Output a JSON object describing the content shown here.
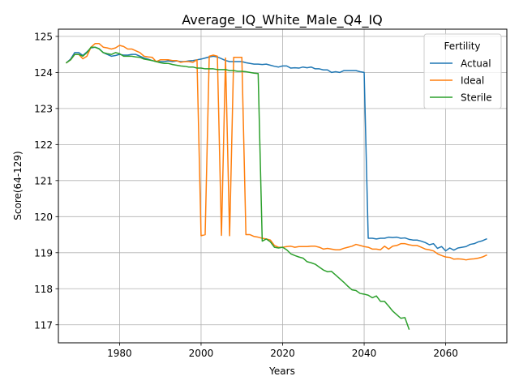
{
  "chart_data": {
    "type": "line",
    "title": "Average_IQ_White_Male_Q4_IQ",
    "xlabel": "Years",
    "ylabel": "Score(64-129)",
    "xlim": [
      1965,
      2075
    ],
    "ylim": [
      116.5,
      125.2
    ],
    "xticks": [
      1980,
      2000,
      2020,
      2040,
      2060
    ],
    "yticks": [
      117,
      118,
      119,
      120,
      121,
      122,
      123,
      124,
      125
    ],
    "grid": true,
    "legend": {
      "title": "Fertility",
      "placement": "upper right"
    },
    "series": [
      {
        "name": "Actual",
        "color": "#1f77b4",
        "points": [
          [
            1967,
            124.27
          ],
          [
            1968,
            124.37
          ],
          [
            1969,
            124.55
          ],
          [
            1970,
            124.55
          ],
          [
            1971,
            124.47
          ],
          [
            1972,
            124.57
          ],
          [
            1973,
            124.68
          ],
          [
            1974,
            124.7
          ],
          [
            1975,
            124.66
          ],
          [
            1976,
            124.55
          ],
          [
            1977,
            124.5
          ],
          [
            1978,
            124.45
          ],
          [
            1979,
            124.47
          ],
          [
            1980,
            124.5
          ],
          [
            1981,
            124.48
          ],
          [
            1982,
            124.48
          ],
          [
            1983,
            124.5
          ],
          [
            1984,
            124.5
          ],
          [
            1985,
            124.45
          ],
          [
            1986,
            124.4
          ],
          [
            1987,
            124.37
          ],
          [
            1988,
            124.33
          ],
          [
            1989,
            124.3
          ],
          [
            1990,
            124.3
          ],
          [
            1991,
            124.3
          ],
          [
            1992,
            124.32
          ],
          [
            1993,
            124.3
          ],
          [
            1994,
            124.32
          ],
          [
            1995,
            124.3
          ],
          [
            1996,
            124.3
          ],
          [
            1997,
            124.32
          ],
          [
            1998,
            124.33
          ],
          [
            1999,
            124.35
          ],
          [
            2000,
            124.37
          ],
          [
            2001,
            124.4
          ],
          [
            2002,
            124.43
          ],
          [
            2003,
            124.45
          ],
          [
            2004,
            124.43
          ],
          [
            2005,
            124.38
          ],
          [
            2006,
            124.33
          ],
          [
            2007,
            124.3
          ],
          [
            2008,
            124.3
          ],
          [
            2009,
            124.3
          ],
          [
            2010,
            124.3
          ],
          [
            2011,
            124.27
          ],
          [
            2012,
            124.25
          ],
          [
            2013,
            124.23
          ],
          [
            2014,
            124.23
          ],
          [
            2015,
            124.22
          ],
          [
            2016,
            124.23
          ],
          [
            2017,
            124.2
          ],
          [
            2018,
            124.17
          ],
          [
            2019,
            124.15
          ],
          [
            2020,
            124.18
          ],
          [
            2021,
            124.18
          ],
          [
            2022,
            124.12
          ],
          [
            2023,
            124.13
          ],
          [
            2024,
            124.12
          ],
          [
            2025,
            124.15
          ],
          [
            2026,
            124.13
          ],
          [
            2027,
            124.15
          ],
          [
            2028,
            124.1
          ],
          [
            2029,
            124.1
          ],
          [
            2030,
            124.07
          ],
          [
            2031,
            124.07
          ],
          [
            2032,
            124.0
          ],
          [
            2033,
            124.02
          ],
          [
            2034,
            124.0
          ],
          [
            2035,
            124.05
          ],
          [
            2036,
            124.05
          ],
          [
            2037,
            124.05
          ],
          [
            2038,
            124.05
          ],
          [
            2039,
            124.02
          ],
          [
            2040,
            124.0
          ],
          [
            2041,
            119.4
          ],
          [
            2042,
            119.4
          ],
          [
            2043,
            119.38
          ],
          [
            2044,
            119.4
          ],
          [
            2045,
            119.4
          ],
          [
            2046,
            119.43
          ],
          [
            2047,
            119.42
          ],
          [
            2048,
            119.43
          ],
          [
            2049,
            119.4
          ],
          [
            2050,
            119.41
          ],
          [
            2051,
            119.37
          ],
          [
            2052,
            119.35
          ],
          [
            2053,
            119.35
          ],
          [
            2054,
            119.32
          ],
          [
            2055,
            119.28
          ],
          [
            2056,
            119.22
          ],
          [
            2057,
            119.25
          ],
          [
            2058,
            119.12
          ],
          [
            2059,
            119.17
          ],
          [
            2060,
            119.05
          ],
          [
            2061,
            119.13
          ],
          [
            2062,
            119.07
          ],
          [
            2063,
            119.13
          ],
          [
            2064,
            119.15
          ],
          [
            2065,
            119.17
          ],
          [
            2066,
            119.23
          ],
          [
            2067,
            119.25
          ],
          [
            2068,
            119.3
          ],
          [
            2069,
            119.33
          ],
          [
            2070,
            119.38
          ]
        ]
      },
      {
        "name": "Ideal",
        "color": "#ff7f0e",
        "points": [
          [
            1967,
            124.27
          ],
          [
            1968,
            124.35
          ],
          [
            1969,
            124.5
          ],
          [
            1970,
            124.5
          ],
          [
            1971,
            124.38
          ],
          [
            1972,
            124.45
          ],
          [
            1973,
            124.7
          ],
          [
            1974,
            124.8
          ],
          [
            1975,
            124.8
          ],
          [
            1976,
            124.7
          ],
          [
            1977,
            124.68
          ],
          [
            1978,
            124.65
          ],
          [
            1979,
            124.68
          ],
          [
            1980,
            124.75
          ],
          [
            1981,
            124.72
          ],
          [
            1982,
            124.65
          ],
          [
            1983,
            124.65
          ],
          [
            1984,
            124.6
          ],
          [
            1985,
            124.55
          ],
          [
            1986,
            124.45
          ],
          [
            1987,
            124.43
          ],
          [
            1988,
            124.42
          ],
          [
            1989,
            124.3
          ],
          [
            1990,
            124.35
          ],
          [
            1991,
            124.35
          ],
          [
            1992,
            124.35
          ],
          [
            1993,
            124.33
          ],
          [
            1994,
            124.33
          ],
          [
            1995,
            124.28
          ],
          [
            1996,
            124.3
          ],
          [
            1997,
            124.3
          ],
          [
            1998,
            124.28
          ],
          [
            1999,
            124.35
          ],
          [
            2000,
            119.47
          ],
          [
            2001,
            119.5
          ],
          [
            2002,
            124.45
          ],
          [
            2003,
            124.48
          ],
          [
            2004,
            124.45
          ],
          [
            2005,
            119.48
          ],
          [
            2006,
            124.4
          ],
          [
            2007,
            119.47
          ],
          [
            2008,
            124.42
          ],
          [
            2009,
            124.42
          ],
          [
            2010,
            124.42
          ],
          [
            2011,
            119.5
          ],
          [
            2012,
            119.5
          ],
          [
            2013,
            119.45
          ],
          [
            2014,
            119.43
          ],
          [
            2015,
            119.4
          ],
          [
            2016,
            119.38
          ],
          [
            2017,
            119.35
          ],
          [
            2018,
            119.2
          ],
          [
            2019,
            119.15
          ],
          [
            2020,
            119.15
          ],
          [
            2021,
            119.17
          ],
          [
            2022,
            119.18
          ],
          [
            2023,
            119.15
          ],
          [
            2024,
            119.17
          ],
          [
            2025,
            119.17
          ],
          [
            2026,
            119.17
          ],
          [
            2027,
            119.18
          ],
          [
            2028,
            119.18
          ],
          [
            2029,
            119.15
          ],
          [
            2030,
            119.1
          ],
          [
            2031,
            119.12
          ],
          [
            2032,
            119.1
          ],
          [
            2033,
            119.08
          ],
          [
            2034,
            119.08
          ],
          [
            2035,
            119.12
          ],
          [
            2036,
            119.15
          ],
          [
            2037,
            119.18
          ],
          [
            2038,
            119.23
          ],
          [
            2039,
            119.2
          ],
          [
            2040,
            119.17
          ],
          [
            2041,
            119.15
          ],
          [
            2042,
            119.1
          ],
          [
            2043,
            119.1
          ],
          [
            2044,
            119.08
          ],
          [
            2045,
            119.18
          ],
          [
            2046,
            119.1
          ],
          [
            2047,
            119.18
          ],
          [
            2048,
            119.2
          ],
          [
            2049,
            119.25
          ],
          [
            2050,
            119.25
          ],
          [
            2051,
            119.22
          ],
          [
            2052,
            119.2
          ],
          [
            2053,
            119.2
          ],
          [
            2054,
            119.15
          ],
          [
            2055,
            119.1
          ],
          [
            2056,
            119.08
          ],
          [
            2057,
            119.05
          ],
          [
            2058,
            118.97
          ],
          [
            2059,
            118.92
          ],
          [
            2060,
            118.88
          ],
          [
            2061,
            118.87
          ],
          [
            2062,
            118.82
          ],
          [
            2063,
            118.83
          ],
          [
            2064,
            118.82
          ],
          [
            2065,
            118.8
          ],
          [
            2066,
            118.82
          ],
          [
            2067,
            118.83
          ],
          [
            2068,
            118.85
          ],
          [
            2069,
            118.88
          ],
          [
            2070,
            118.93
          ]
        ]
      },
      {
        "name": "Sterile",
        "color": "#2ca02c",
        "points": [
          [
            1967,
            124.27
          ],
          [
            1968,
            124.35
          ],
          [
            1969,
            124.5
          ],
          [
            1970,
            124.5
          ],
          [
            1971,
            124.45
          ],
          [
            1972,
            124.55
          ],
          [
            1973,
            124.7
          ],
          [
            1974,
            124.7
          ],
          [
            1975,
            124.65
          ],
          [
            1976,
            124.55
          ],
          [
            1977,
            124.52
          ],
          [
            1978,
            124.5
          ],
          [
            1979,
            124.55
          ],
          [
            1980,
            124.52
          ],
          [
            1981,
            124.45
          ],
          [
            1982,
            124.45
          ],
          [
            1983,
            124.45
          ],
          [
            1984,
            124.43
          ],
          [
            1985,
            124.42
          ],
          [
            1986,
            124.37
          ],
          [
            1987,
            124.35
          ],
          [
            1988,
            124.33
          ],
          [
            1989,
            124.3
          ],
          [
            1990,
            124.27
          ],
          [
            1991,
            124.25
          ],
          [
            1992,
            124.25
          ],
          [
            1993,
            124.22
          ],
          [
            1994,
            124.2
          ],
          [
            1995,
            124.18
          ],
          [
            1996,
            124.17
          ],
          [
            1997,
            124.15
          ],
          [
            1998,
            124.15
          ],
          [
            1999,
            124.12
          ],
          [
            2000,
            124.12
          ],
          [
            2001,
            124.1
          ],
          [
            2002,
            124.1
          ],
          [
            2003,
            124.1
          ],
          [
            2004,
            124.08
          ],
          [
            2005,
            124.08
          ],
          [
            2006,
            124.08
          ],
          [
            2007,
            124.05
          ],
          [
            2008,
            124.05
          ],
          [
            2009,
            124.03
          ],
          [
            2010,
            124.03
          ],
          [
            2011,
            124.02
          ],
          [
            2012,
            124.0
          ],
          [
            2013,
            123.98
          ],
          [
            2014,
            123.97
          ],
          [
            2015,
            119.32
          ],
          [
            2016,
            119.38
          ],
          [
            2017,
            119.3
          ],
          [
            2018,
            119.15
          ],
          [
            2019,
            119.13
          ],
          [
            2020,
            119.15
          ],
          [
            2021,
            119.08
          ],
          [
            2022,
            118.97
          ],
          [
            2023,
            118.92
          ],
          [
            2024,
            118.88
          ],
          [
            2025,
            118.85
          ],
          [
            2026,
            118.75
          ],
          [
            2027,
            118.72
          ],
          [
            2028,
            118.68
          ],
          [
            2029,
            118.6
          ],
          [
            2030,
            118.52
          ],
          [
            2031,
            118.47
          ],
          [
            2032,
            118.48
          ],
          [
            2033,
            118.38
          ],
          [
            2034,
            118.28
          ],
          [
            2035,
            118.18
          ],
          [
            2036,
            118.07
          ],
          [
            2037,
            117.97
          ],
          [
            2038,
            117.95
          ],
          [
            2039,
            117.87
          ],
          [
            2040,
            117.85
          ],
          [
            2041,
            117.82
          ],
          [
            2042,
            117.75
          ],
          [
            2043,
            117.8
          ],
          [
            2044,
            117.65
          ],
          [
            2045,
            117.65
          ],
          [
            2046,
            117.52
          ],
          [
            2047,
            117.38
          ],
          [
            2048,
            117.28
          ],
          [
            2049,
            117.18
          ],
          [
            2050,
            117.2
          ],
          [
            2051,
            116.88
          ]
        ]
      }
    ]
  }
}
